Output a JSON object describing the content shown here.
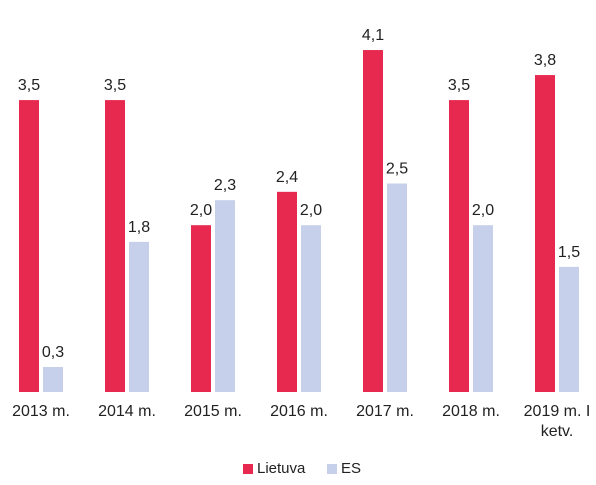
{
  "chart_data": {
    "type": "bar",
    "categories": [
      "2013 m.",
      "2014 m.",
      "2015 m.",
      "2016 m.",
      "2017 m.",
      "2018 m.",
      "2019 m. I ketv."
    ],
    "series": [
      {
        "name": "Lietuva",
        "color": "#e8294f",
        "values": [
          3.5,
          3.5,
          2.0,
          2.4,
          4.1,
          3.5,
          3.8
        ],
        "value_labels": [
          "3,5",
          "3,5",
          "2,0",
          "2,4",
          "4,1",
          "3,5",
          "3,8"
        ]
      },
      {
        "name": "ES",
        "color": "#c6d0ea",
        "values": [
          0.3,
          1.8,
          2.3,
          2.0,
          2.5,
          2.0,
          1.5
        ],
        "value_labels": [
          "0,3",
          "1,8",
          "2,3",
          "2,0",
          "2,5",
          "2,0",
          "1,5"
        ]
      }
    ],
    "ylim": [
      0,
      4.7
    ],
    "legend": "bottom"
  }
}
